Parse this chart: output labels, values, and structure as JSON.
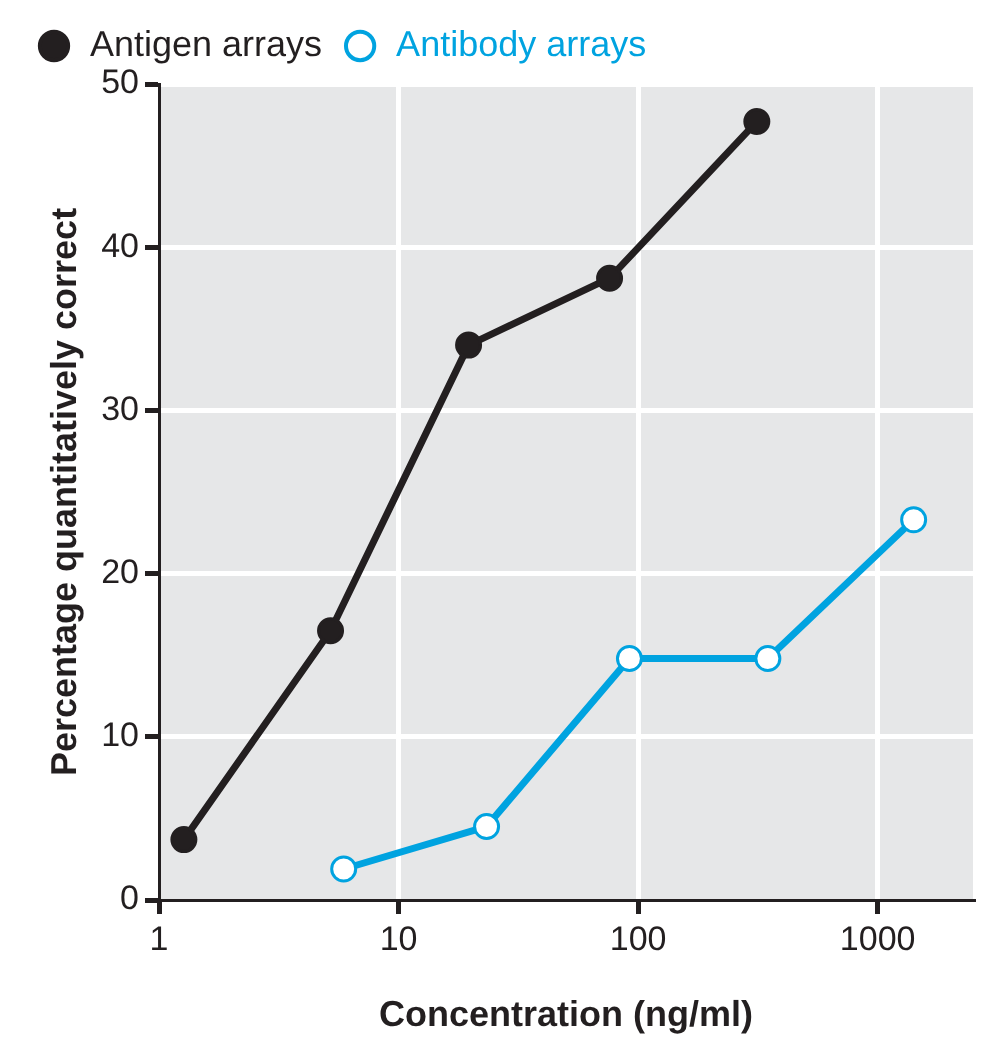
{
  "chart_data": {
    "type": "line",
    "xlabel": "Concentration (ng/ml)",
    "ylabel": "Percentage quantitatively correct",
    "log": "x",
    "xlim": [
      1,
      2500
    ],
    "xticks": [
      1,
      10,
      100,
      1000
    ],
    "ylim": [
      0,
      50
    ],
    "yticks": [
      0,
      10,
      20,
      30,
      40,
      50
    ],
    "grid": true,
    "legend": "top left",
    "marker": "circle",
    "line_style": "solid",
    "series": [
      {
        "name": "Antigen arrays",
        "color": "#231f20",
        "x": [
          1.27,
          5.2,
          19.6,
          76,
          313
        ],
        "values": [
          3.7,
          16.5,
          34,
          38.1,
          47.7
        ]
      },
      {
        "name": "Antibody arrays",
        "color": "#00a3e0",
        "x": [
          5.9,
          23.3,
          92,
          348,
          1413
        ],
        "values": [
          1.9,
          4.5,
          14.8,
          14.8,
          23.3
        ]
      }
    ]
  }
}
